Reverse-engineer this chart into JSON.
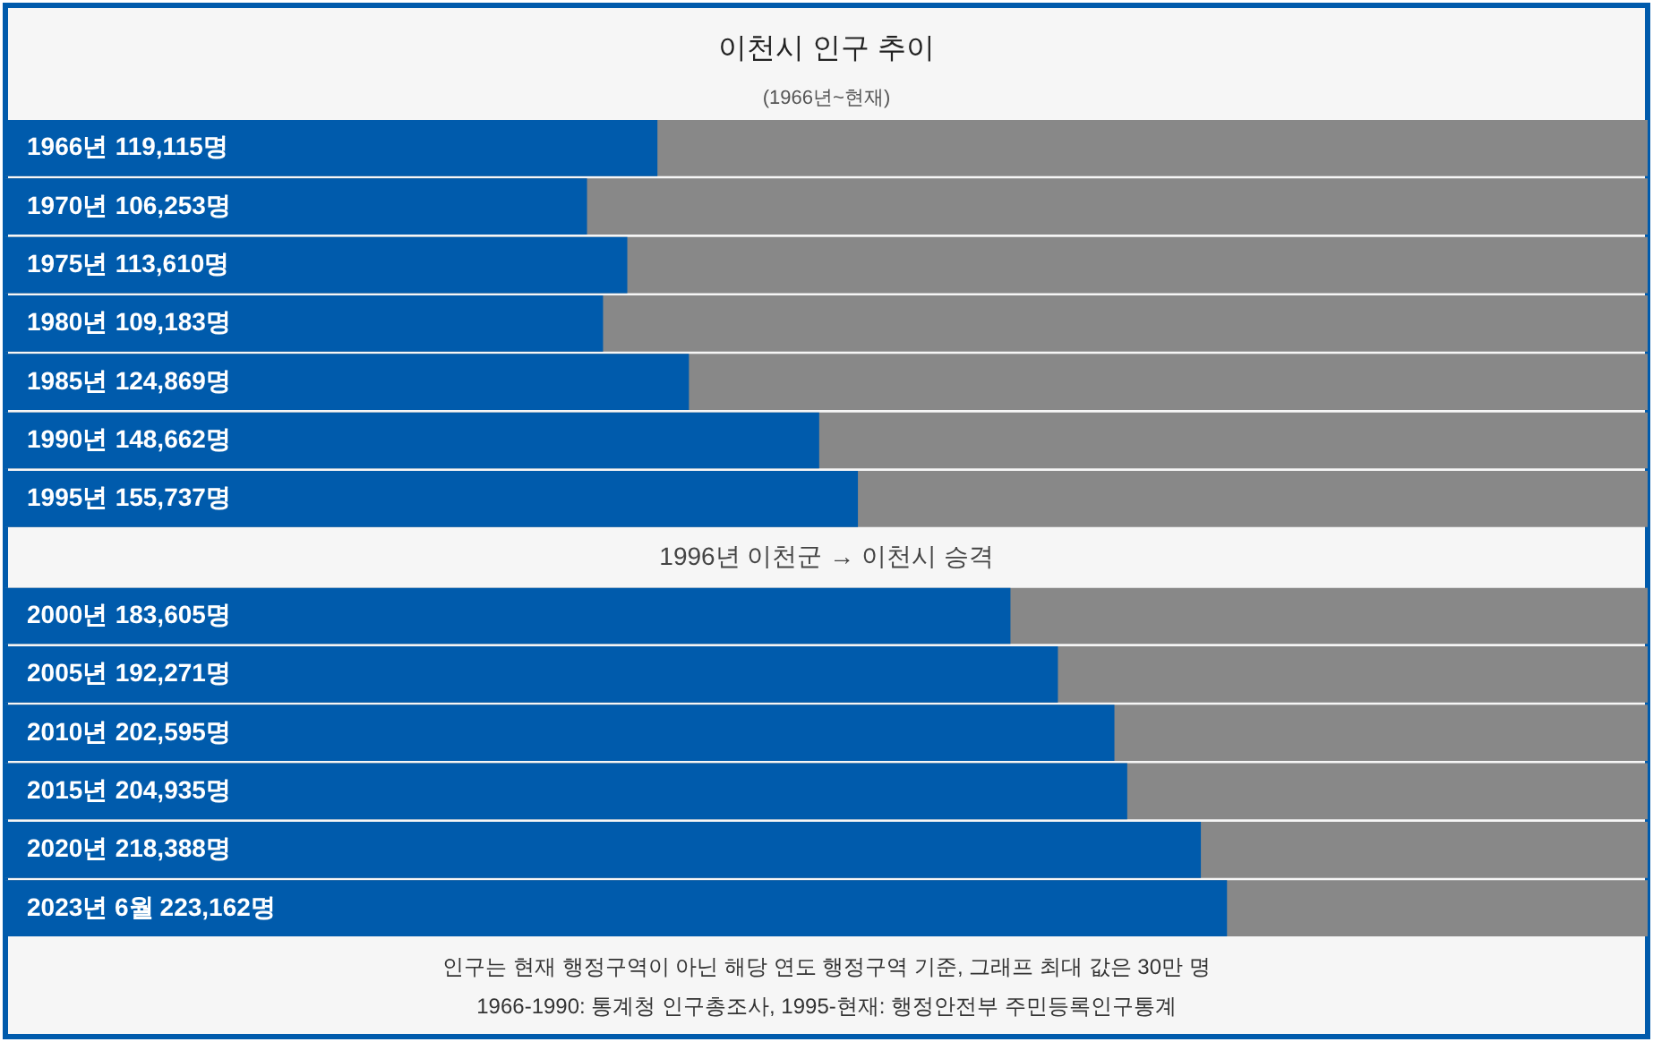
{
  "chart_data": {
    "type": "bar",
    "orientation": "horizontal",
    "title": "이천시 인구 추이",
    "subtitle": "(1966년~현재)",
    "categories": [
      "1966년",
      "1970년",
      "1975년",
      "1980년",
      "1985년",
      "1990년",
      "1995년",
      null,
      "2000년",
      "2005년",
      "2010년",
      "2015년",
      "2020년",
      "2023년 6월"
    ],
    "values": [
      119115,
      106253,
      113610,
      109183,
      124869,
      148662,
      155737,
      null,
      183605,
      192271,
      202595,
      204935,
      218388,
      223162
    ],
    "value_labels": [
      "119,115명",
      "106,253명",
      "113,610명",
      "109,183명",
      "124,869명",
      "148,662명",
      "155,737명",
      null,
      "183,605명",
      "192,271명",
      "202,595명",
      "204,935명",
      "218,388명",
      "223,162명"
    ],
    "color": "#005bac",
    "xlim": [
      0,
      300000
    ],
    "tick_labels": "y",
    "annotations": [
      "1996년 이천군 → 이천시 승격",
      "인구는 현재 행정구역이 아닌 해당 연도 행정구역 기준, 그래프 최대 값은 30만 명",
      "1966-1990: 통계청 인구총조사, 1995-현재: 행정안전부 주민등록인구통계"
    ]
  }
}
